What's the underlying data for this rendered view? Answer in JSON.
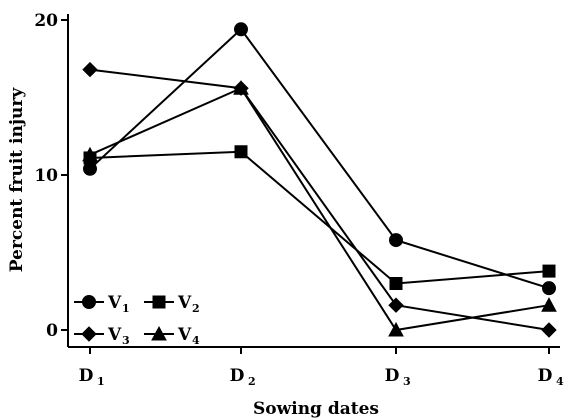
{
  "chart_data": {
    "type": "line",
    "title": "",
    "xlabel": "Sowing dates",
    "ylabel": "Percent fruit injury",
    "ylim": [
      0,
      20
    ],
    "yticks": [
      0,
      10,
      20
    ],
    "grid": false,
    "legend_position": "bottom-left",
    "categories": [
      {
        "main": "D",
        "sub": "1"
      },
      {
        "main": "D",
        "sub": "2"
      },
      {
        "main": "D",
        "sub": "3"
      },
      {
        "main": "D",
        "sub": "4"
      }
    ],
    "series": [
      {
        "name_main": "V",
        "name_sub": "1",
        "marker": "circle",
        "values": [
          10.4,
          19.4,
          5.8,
          2.7
        ]
      },
      {
        "name_main": "V",
        "name_sub": "2",
        "marker": "square",
        "values": [
          11.1,
          11.5,
          3.0,
          3.8
        ]
      },
      {
        "name_main": "V",
        "name_sub": "3",
        "marker": "diamond",
        "values": [
          16.8,
          15.6,
          1.6,
          0.0
        ]
      },
      {
        "name_main": "V",
        "name_sub": "4",
        "marker": "triangle",
        "values": [
          11.3,
          15.6,
          0.0,
          1.6
        ]
      }
    ],
    "colors": {
      "line": "#000000",
      "marker": "#000000"
    }
  }
}
